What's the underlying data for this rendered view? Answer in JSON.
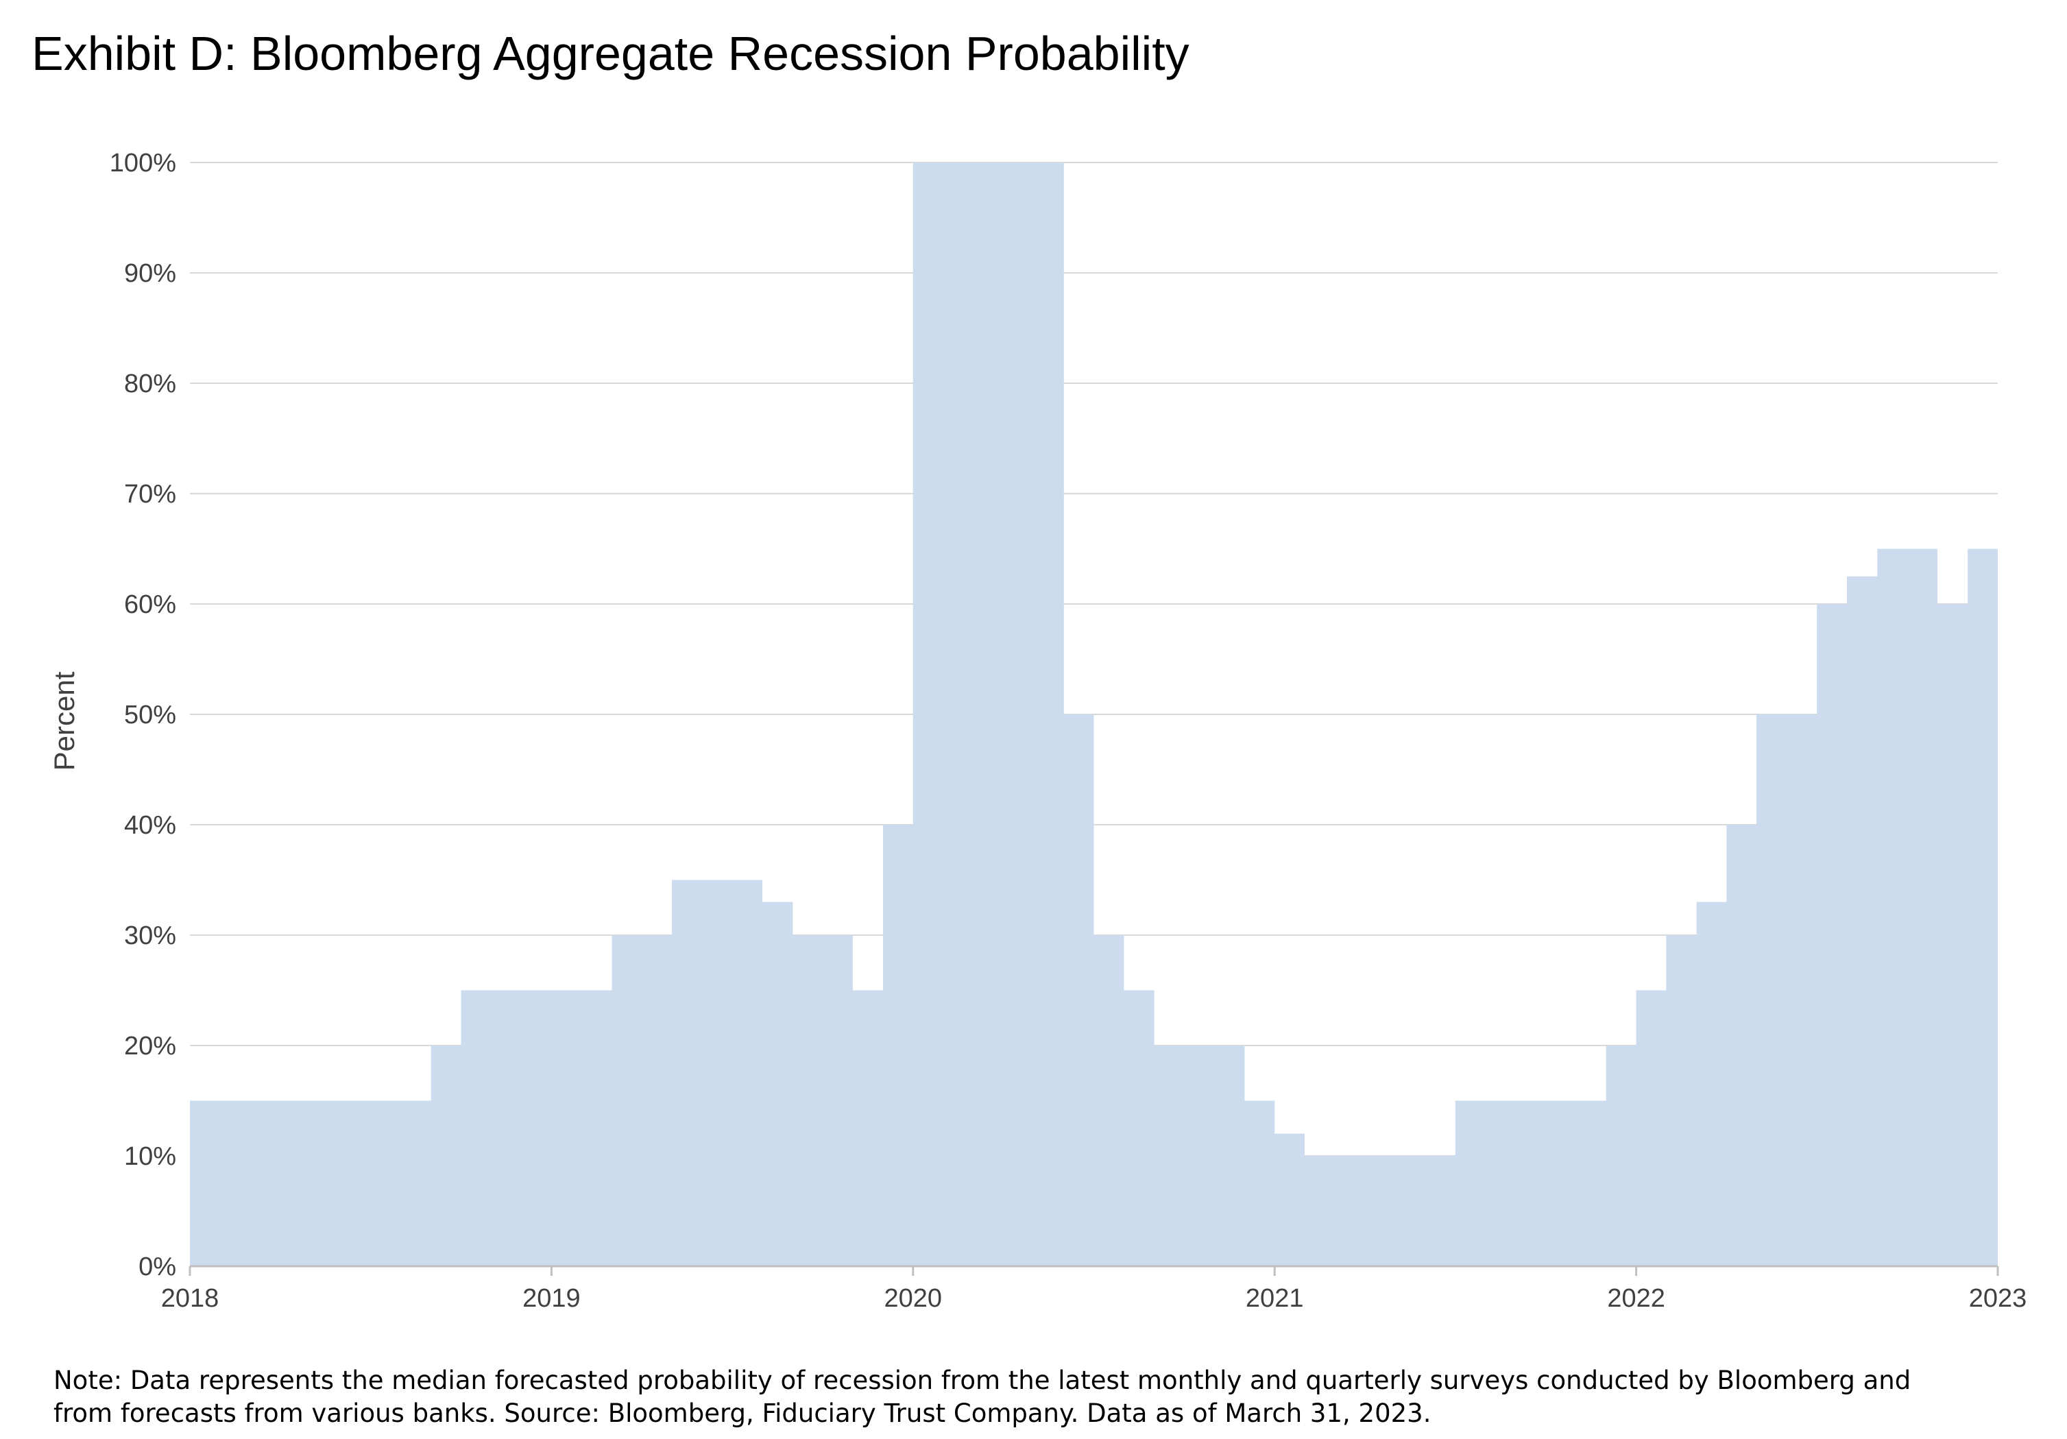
{
  "title": "Exhibit D: Bloomberg Aggregate Recession Probability",
  "note": "Note: Data represents the median forecasted probability of recession from the latest monthly and quarterly surveys conducted by Bloomberg and from forecasts from various banks. Source: Bloomberg, Fiduciary Trust Company. Data as of March 31, 2023.",
  "colors": {
    "area": "#ccdcee",
    "grid": "#d9d9d9",
    "axis": "#bfbfbf",
    "text": "#404040"
  },
  "chart_data": {
    "type": "area",
    "step": true,
    "ylabel": "Percent",
    "xlabel": "",
    "xlim": [
      2018,
      2023
    ],
    "ylim": [
      0,
      100
    ],
    "x_ticks": [
      "2018",
      "2019",
      "2020",
      "2021",
      "2022",
      "2023"
    ],
    "y_ticks": [
      "0%",
      "10%",
      "20%",
      "30%",
      "40%",
      "50%",
      "60%",
      "70%",
      "80%",
      "90%",
      "100%"
    ],
    "grid": true,
    "legend": "none",
    "series": [
      {
        "points": [
          [
            2018.0,
            15
          ],
          [
            2018.667,
            20
          ],
          [
            2018.75,
            25
          ],
          [
            2019.167,
            30
          ],
          [
            2019.333,
            35
          ],
          [
            2019.583,
            33
          ],
          [
            2019.667,
            30
          ],
          [
            2019.833,
            25
          ],
          [
            2019.917,
            40
          ],
          [
            2020.0,
            100
          ],
          [
            2020.417,
            50
          ],
          [
            2020.5,
            30
          ],
          [
            2020.583,
            25
          ],
          [
            2020.667,
            20
          ],
          [
            2020.917,
            15
          ],
          [
            2021.0,
            12
          ],
          [
            2021.083,
            10
          ],
          [
            2021.5,
            15
          ],
          [
            2021.917,
            20
          ],
          [
            2022.0,
            25
          ],
          [
            2022.083,
            30
          ],
          [
            2022.167,
            33
          ],
          [
            2022.25,
            40
          ],
          [
            2022.333,
            50
          ],
          [
            2022.5,
            60
          ],
          [
            2022.583,
            62.5
          ],
          [
            2022.667,
            65
          ],
          [
            2022.833,
            60
          ],
          [
            2022.917,
            65
          ]
        ]
      }
    ]
  }
}
